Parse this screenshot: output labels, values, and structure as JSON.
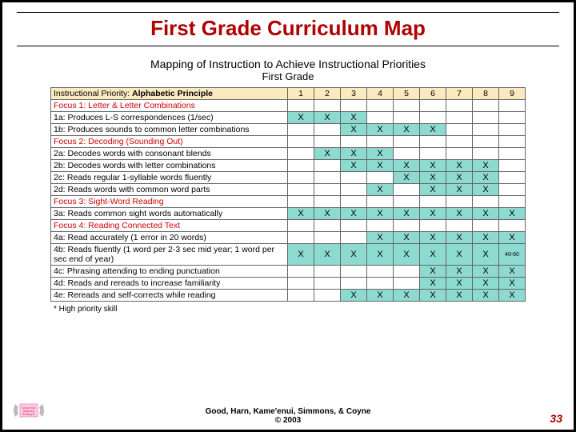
{
  "title": "First Grade Curriculum Map",
  "map_title": "Mapping of Instruction to Achieve Instructional Priorities",
  "map_subtitle": "First Grade",
  "header_left_label": "Instructional Priority:",
  "header_left_bold": "Alphabetic Principle",
  "num_cols": [
    "1",
    "2",
    "3",
    "4",
    "5",
    "6",
    "7",
    "8",
    "9"
  ],
  "rows": [
    {
      "type": "focus",
      "label": "Focus 1: Letter & Letter Combinations"
    },
    {
      "type": "item",
      "label": "1a: Produces L-S correspondences (1/sec)",
      "cells": [
        "X",
        "X",
        "X",
        "",
        "",
        "",
        "",
        "",
        ""
      ]
    },
    {
      "type": "item",
      "label": "1b: Produces sounds to common letter combinations",
      "cells": [
        "",
        "",
        "X",
        "X",
        "X",
        "X",
        "",
        "",
        ""
      ]
    },
    {
      "type": "focus",
      "label": "Focus 2: Decoding (Sounding Out)"
    },
    {
      "type": "item",
      "label": "2a: Decodes words with consonant blends",
      "cells": [
        "",
        "X",
        "X",
        "X",
        "",
        "",
        "",
        "",
        ""
      ]
    },
    {
      "type": "item",
      "label": "2b: Decodes words with letter combinations",
      "cells": [
        "",
        "",
        "X",
        "X",
        "X",
        "X",
        "X",
        "X",
        ""
      ]
    },
    {
      "type": "item",
      "label": "2c: Reads regular 1-syllable words fluently",
      "cells": [
        "",
        "",
        "",
        "",
        "X",
        "X",
        "X",
        "X",
        ""
      ]
    },
    {
      "type": "item",
      "label": "2d: Reads words with common word parts",
      "cells": [
        "",
        "",
        "",
        "X",
        "",
        "X",
        "X",
        "X",
        ""
      ]
    },
    {
      "type": "focus",
      "label": "Focus 3: Sight-Word Reading"
    },
    {
      "type": "item",
      "label": "3a: Reads common sight words automatically",
      "cells": [
        "X",
        "X",
        "X",
        "X",
        "X",
        "X",
        "X",
        "X",
        "X"
      ]
    },
    {
      "type": "focus",
      "label": "Focus 4: Reading Connected Text"
    },
    {
      "type": "item",
      "label": "4a: Read accurately (1 error in 20 words)",
      "cells": [
        "",
        "",
        "",
        "X",
        "X",
        "X",
        "X",
        "X",
        "X"
      ]
    },
    {
      "type": "item",
      "label": "4b: Reads fluently (1 word per 2-3 sec mid year; 1 word per sec end of year)",
      "cells": [
        "X",
        "X",
        "X",
        "X",
        "X",
        "X",
        "X",
        "X",
        "40-60"
      ],
      "lastSmall": true
    },
    {
      "type": "item",
      "label": "4c: Phrasing attending to ending punctuation",
      "cells": [
        "",
        "",
        "",
        "",
        "",
        "X",
        "X",
        "X",
        "X"
      ]
    },
    {
      "type": "item",
      "label": "4d: Reads and rereads to increase familiarity",
      "cells": [
        "",
        "",
        "",
        "",
        "",
        "X",
        "X",
        "X",
        "X"
      ]
    },
    {
      "type": "item",
      "label": "4e: Rereads and self-corrects while reading",
      "cells": [
        "",
        "",
        "X",
        "X",
        "X",
        "X",
        "X",
        "X",
        "X"
      ]
    }
  ],
  "footnote": "* High priority skill",
  "footer_line1": "Good, Harn, Kame'enui, Simmons, & Coyne",
  "footer_line2": "© 2003",
  "page_number": "33",
  "colors": {
    "title": "#b00000",
    "focus": "#c00",
    "header_bg": "#fbeac0",
    "highlight": "#8ddad1"
  }
}
